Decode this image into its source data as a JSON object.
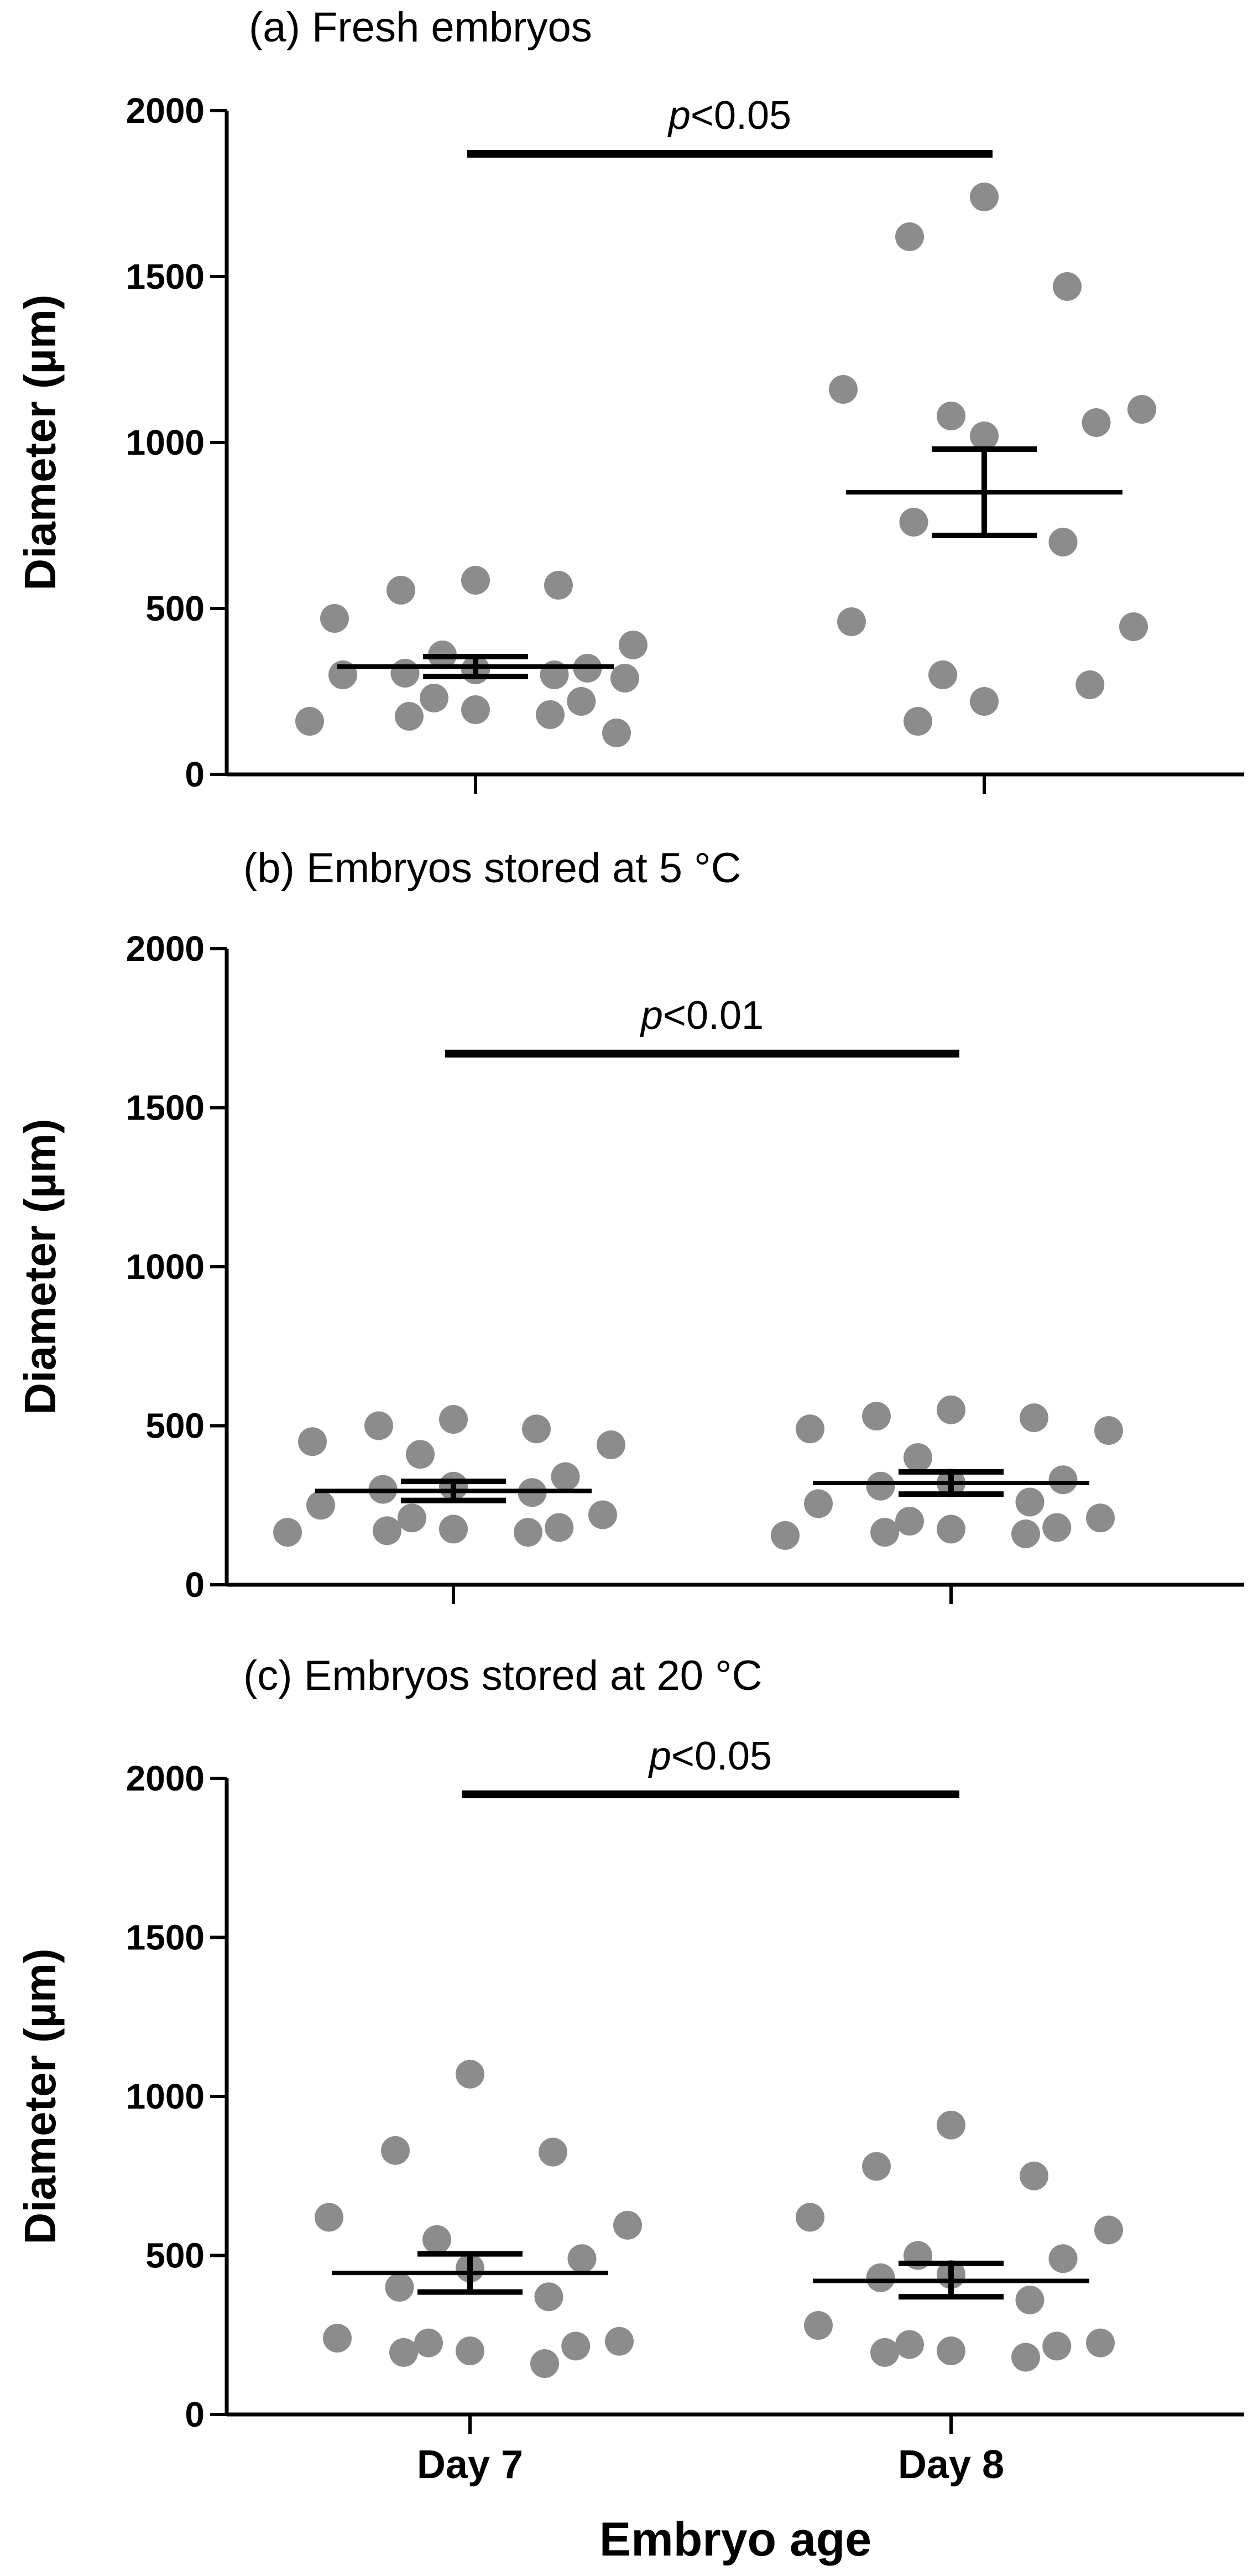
{
  "chart_data": [
    {
      "type": "scatter",
      "title": "(a) Fresh embryos",
      "ylabel": "Diameter (µm)",
      "xlabel": "",
      "categories": [
        "Day 7",
        "Day 8"
      ],
      "show_category_labels": false,
      "ylim": [
        0,
        2000
      ],
      "yticks": [
        "0",
        "500",
        "1000",
        "1500",
        "2000"
      ],
      "significance": {
        "p_italic": "p",
        "p_rest": "<0.05",
        "y": 1870
      },
      "groups": [
        {
          "category": "Day 7",
          "mean": 325,
          "sem_low": 295,
          "sem_high": 355,
          "values": [
            585,
            555,
            570,
            470,
            390,
            360,
            320,
            315,
            305,
            300,
            300,
            290,
            230,
            220,
            195,
            175,
            180,
            160,
            125
          ]
        },
        {
          "category": "Day 8",
          "mean": 850,
          "sem_low": 720,
          "sem_high": 980,
          "values": [
            1740,
            1620,
            1470,
            1160,
            1100,
            1080,
            1060,
            1020,
            760,
            700,
            460,
            445,
            300,
            270,
            220,
            160
          ]
        }
      ]
    },
    {
      "type": "scatter",
      "title": "(b) Embryos stored at 5 °C",
      "ylabel": "Diameter (µm)",
      "xlabel": "",
      "categories": [
        "Day 7",
        "Day 8"
      ],
      "show_category_labels": false,
      "ylim": [
        0,
        2000
      ],
      "yticks": [
        "0",
        "500",
        "1000",
        "1500",
        "2000"
      ],
      "significance": {
        "p_italic": "p",
        "p_rest": "<0.01",
        "y": 1670
      },
      "groups": [
        {
          "category": "Day 7",
          "mean": 295,
          "sem_low": 265,
          "sem_high": 325,
          "values": [
            520,
            500,
            490,
            450,
            440,
            410,
            340,
            310,
            300,
            290,
            250,
            220,
            210,
            180,
            175,
            170,
            165,
            165
          ]
        },
        {
          "category": "Day 8",
          "mean": 320,
          "sem_low": 285,
          "sem_high": 355,
          "values": [
            550,
            530,
            525,
            490,
            485,
            400,
            330,
            320,
            310,
            260,
            255,
            210,
            200,
            180,
            175,
            165,
            160,
            155
          ]
        }
      ]
    },
    {
      "type": "scatter",
      "title": "(c) Embryos stored at 20 °C",
      "ylabel": "Diameter (µm)",
      "xlabel": "Embryo age",
      "categories": [
        "Day 7",
        "Day 8"
      ],
      "show_category_labels": true,
      "ylim": [
        0,
        2000
      ],
      "yticks": [
        "0",
        "500",
        "1000",
        "1500",
        "2000"
      ],
      "significance": {
        "p_italic": "p",
        "p_rest": "<0.05",
        "y": 1950
      },
      "groups": [
        {
          "category": "Day 7",
          "mean": 445,
          "sem_low": 385,
          "sem_high": 505,
          "values": [
            1070,
            830,
            825,
            620,
            595,
            550,
            490,
            460,
            400,
            370,
            240,
            230,
            225,
            215,
            200,
            195,
            160
          ]
        },
        {
          "category": "Day 8",
          "mean": 420,
          "sem_low": 370,
          "sem_high": 475,
          "values": [
            910,
            780,
            750,
            620,
            580,
            500,
            490,
            440,
            430,
            360,
            280,
            225,
            220,
            215,
            200,
            195,
            180
          ]
        }
      ]
    }
  ]
}
